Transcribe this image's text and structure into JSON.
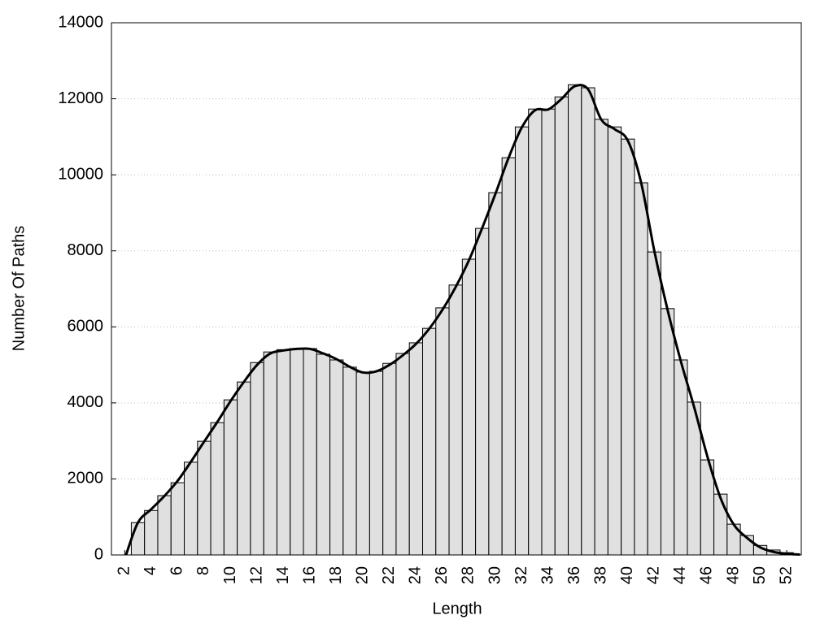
{
  "chart_data": {
    "type": "histogram",
    "xlabel": "Length",
    "ylabel": "Number Of Paths",
    "bins": [
      2.5,
      3.5,
      4.5,
      5.5,
      6.5,
      7.5,
      8.5,
      9.5,
      10.5,
      11.5,
      12.5,
      13.5,
      14.5,
      15.5,
      16.5,
      17.5,
      18.5,
      19.5,
      20.5,
      21.5,
      22.5,
      23.5,
      24.5,
      25.5,
      26.5,
      27.5,
      28.5,
      29.5,
      30.5,
      31.5,
      32.5,
      33.5,
      34.5,
      35.5,
      36.5,
      37.5,
      38.5,
      39.5,
      40.5,
      41.5,
      42.5,
      43.5,
      44.5,
      45.5,
      46.5,
      47.5,
      48.5,
      49.5,
      50.5,
      51.5,
      52.5
    ],
    "counts": [
      850,
      1170,
      1560,
      1900,
      2440,
      2990,
      3480,
      4080,
      4550,
      5060,
      5340,
      5400,
      5430,
      5430,
      5280,
      5130,
      4940,
      4810,
      4830,
      5040,
      5300,
      5580,
      5960,
      6500,
      7100,
      7780,
      8590,
      9530,
      10450,
      11260,
      11730,
      11730,
      12050,
      12370,
      12290,
      11460,
      11260,
      10940,
      9790,
      7970,
      6480,
      5130,
      4020,
      2500,
      1600,
      810,
      510,
      250,
      130,
      60
    ],
    "color": "#e0e0e0",
    "curve": {
      "color": "#000000",
      "x": [
        2.1,
        3,
        4,
        5,
        6,
        7,
        8,
        9,
        10,
        11,
        12,
        13,
        14,
        15,
        16,
        17,
        18,
        19,
        20,
        21,
        22,
        23,
        24,
        25,
        26,
        27,
        28,
        29,
        30,
        31,
        32,
        33,
        34,
        35,
        36,
        37,
        38,
        39,
        40,
        41,
        42,
        43,
        44,
        45,
        46,
        47,
        48,
        49,
        50,
        51,
        52,
        53
      ],
      "values": [
        0,
        850,
        1200,
        1550,
        1950,
        2450,
        2980,
        3500,
        4050,
        4550,
        5000,
        5300,
        5380,
        5420,
        5420,
        5300,
        5150,
        4950,
        4800,
        4830,
        5000,
        5250,
        5550,
        5950,
        6450,
        7050,
        7750,
        8600,
        9500,
        10450,
        11250,
        11700,
        11720,
        12000,
        12330,
        12250,
        11450,
        11200,
        10900,
        9800,
        8000,
        6450,
        5100,
        3900,
        2600,
        1500,
        800,
        450,
        200,
        80,
        30,
        10
      ]
    },
    "xlim": [
      1,
      53.1
    ],
    "ylim": [
      0,
      14000
    ],
    "xticks": [
      2,
      4,
      6,
      8,
      10,
      12,
      14,
      16,
      18,
      20,
      22,
      24,
      26,
      28,
      30,
      32,
      34,
      36,
      38,
      40,
      42,
      44,
      46,
      48,
      50,
      52
    ],
    "yticks": [
      0,
      2000,
      4000,
      6000,
      8000,
      10000,
      12000,
      14000
    ],
    "grid": true
  }
}
